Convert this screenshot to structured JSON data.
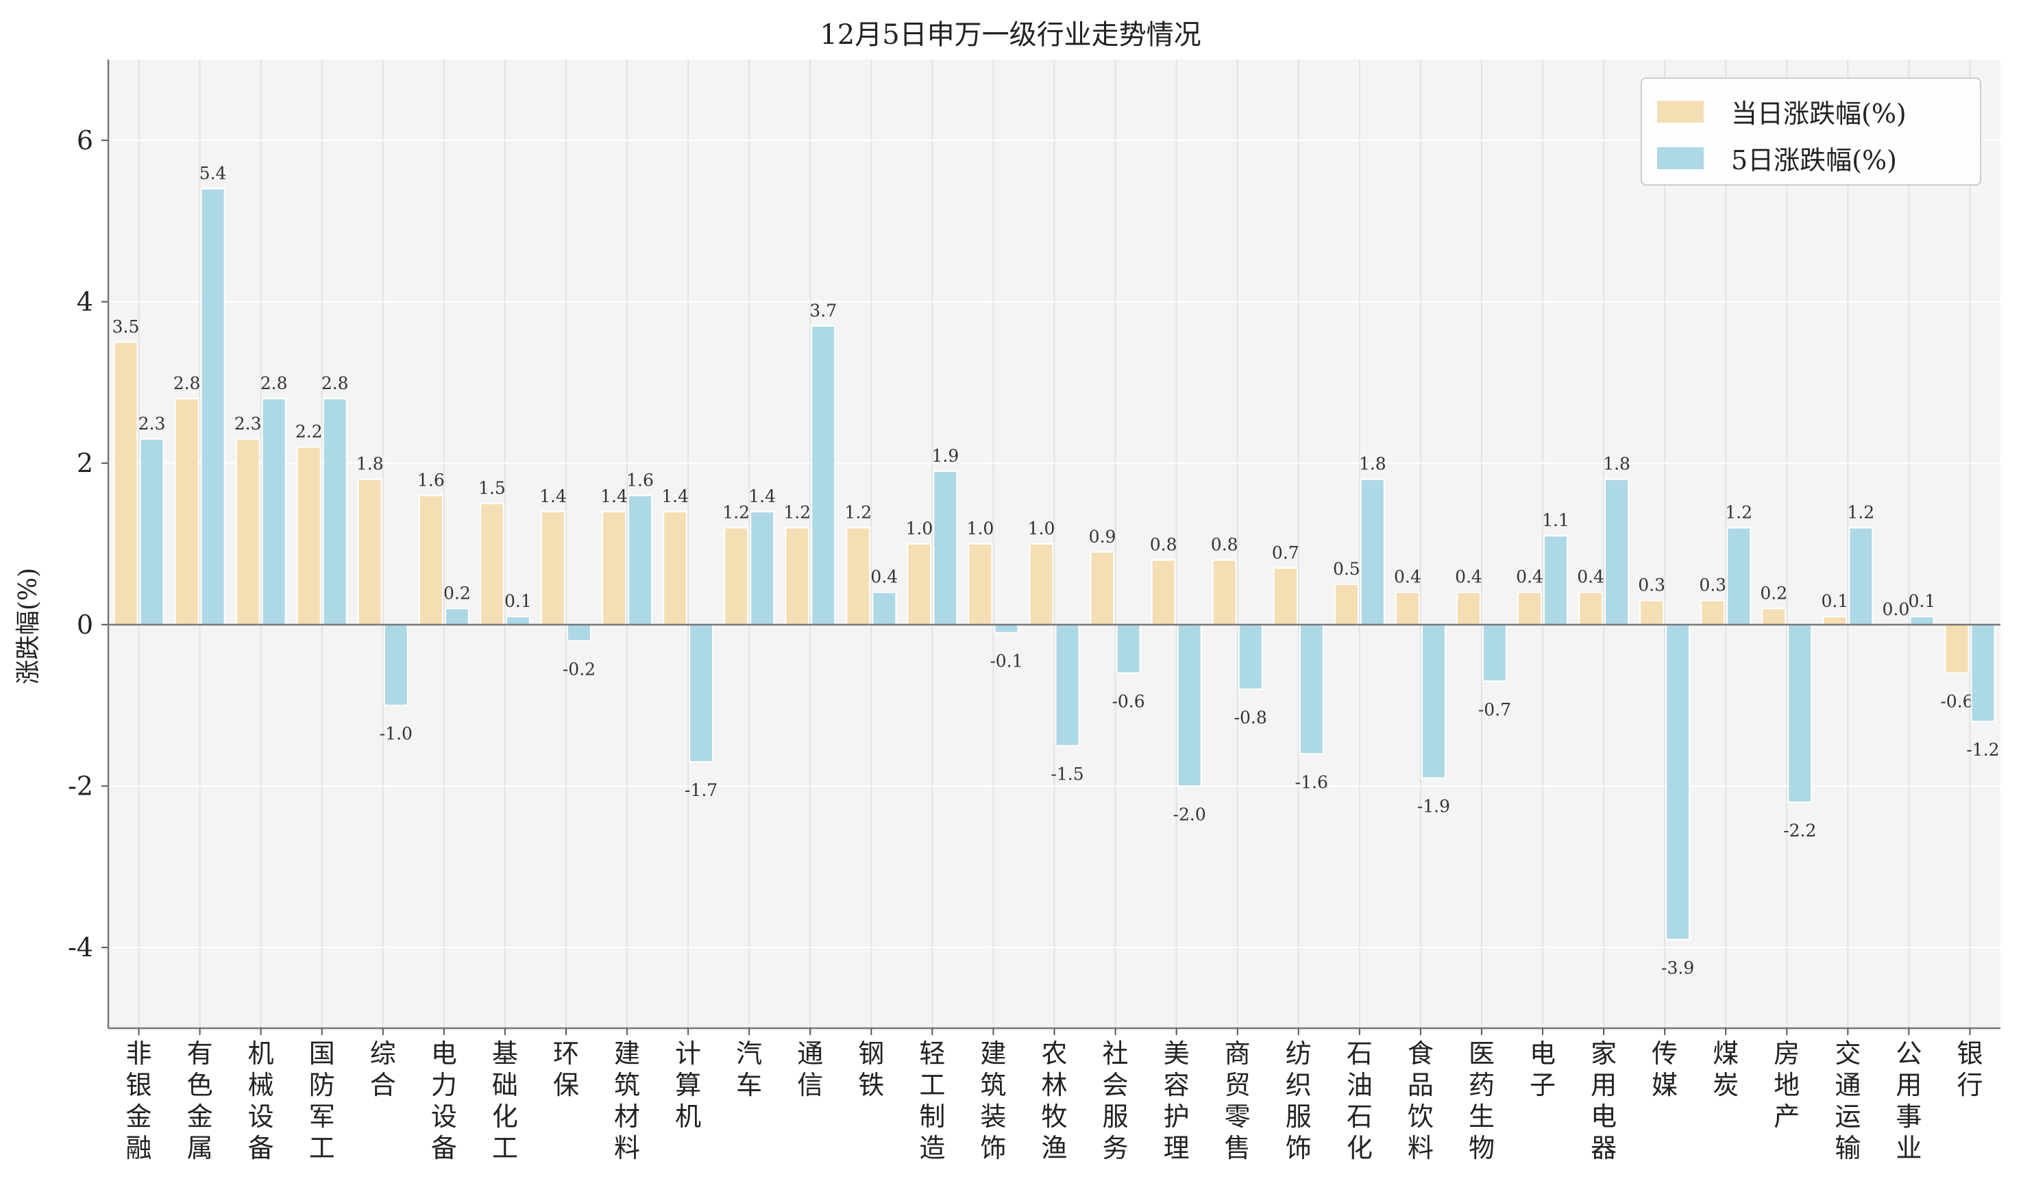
{
  "chart_data": {
    "type": "bar",
    "title": "12月5日申万一级行业走势情况",
    "xlabel": "",
    "ylabel": "涨跌幅(%)",
    "ylim": [
      -5,
      7
    ],
    "yticks": [
      -4,
      -2,
      0,
      2,
      4,
      6
    ],
    "grid": true,
    "legend_position": "top-right",
    "categories": [
      "非银金融",
      "有色金属",
      "机械设备",
      "国防军工",
      "综合",
      "电力设备",
      "基础化工",
      "环保",
      "建筑材料",
      "计算机",
      "汽车",
      "通信",
      "钢铁",
      "轻工制造",
      "建筑装饰",
      "农林牧渔",
      "社会服务",
      "美容护理",
      "商贸零售",
      "纺织服饰",
      "石油石化",
      "食品饮料",
      "医药生物",
      "电子",
      "家用电器",
      "传媒",
      "煤炭",
      "房地产",
      "交通运输",
      "公用事业",
      "银行"
    ],
    "series": [
      {
        "name": "当日涨跌幅(%)",
        "color": "#F5DEB3",
        "values": [
          3.5,
          2.8,
          2.3,
          2.2,
          1.8,
          1.6,
          1.5,
          1.4,
          1.4,
          1.4,
          1.2,
          1.2,
          1.2,
          1.0,
          1.0,
          1.0,
          0.9,
          0.8,
          0.8,
          0.7,
          0.5,
          0.4,
          0.4,
          0.4,
          0.4,
          0.3,
          0.3,
          0.2,
          0.1,
          0.0,
          -0.6
        ]
      },
      {
        "name": "5日涨跌幅(%)",
        "color": "#ADD8E6",
        "values": [
          2.3,
          5.4,
          2.8,
          2.8,
          -1.0,
          0.2,
          0.1,
          -0.2,
          1.6,
          -1.7,
          1.4,
          3.7,
          0.4,
          1.9,
          -0.1,
          -1.5,
          -0.6,
          -2.0,
          -0.8,
          -1.6,
          1.8,
          -1.9,
          -0.7,
          1.1,
          1.8,
          -3.9,
          1.2,
          -2.2,
          1.2,
          0.1,
          -1.2
        ]
      }
    ]
  }
}
